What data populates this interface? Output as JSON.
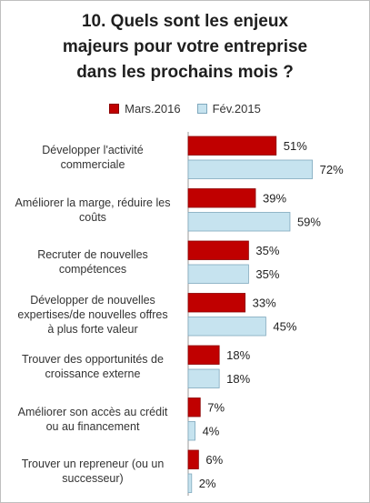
{
  "title_lines": [
    "10. Quels sont les enjeux",
    "majeurs pour votre entreprise",
    "dans les prochains mois ?"
  ],
  "legend": [
    {
      "label": "Mars.2016",
      "color": "#c00000"
    },
    {
      "label": "Fév.2015",
      "color": "#c6e3ef"
    }
  ],
  "chart_data": {
    "type": "bar",
    "orientation": "horizontal",
    "title": "10. Quels sont les enjeux majeurs pour votre entreprise dans les prochains mois ?",
    "categories": [
      [
        "Développer l'activité",
        "commerciale"
      ],
      [
        "Améliorer la marge, réduire les",
        "coûts"
      ],
      [
        "Recruter de nouvelles",
        "compétences"
      ],
      [
        "Développer de nouvelles",
        "expertises/de nouvelles offres",
        "à plus forte valeur"
      ],
      [
        "Trouver des opportunités de",
        "croissance externe"
      ],
      [
        "Améliorer son accès au crédit",
        "ou au financement"
      ],
      [
        "Trouver un repreneur (ou un",
        "successeur)"
      ]
    ],
    "series": [
      {
        "name": "Mars.2016",
        "color": "#c00000",
        "values": [
          51,
          39,
          35,
          33,
          18,
          7,
          6
        ]
      },
      {
        "name": "Fév.2015",
        "color": "#c6e3ef",
        "values": [
          72,
          59,
          35,
          45,
          18,
          4,
          2
        ]
      }
    ],
    "value_suffix": "%",
    "xlim": [
      0,
      100
    ],
    "grid": false,
    "legend_position": "top"
  }
}
